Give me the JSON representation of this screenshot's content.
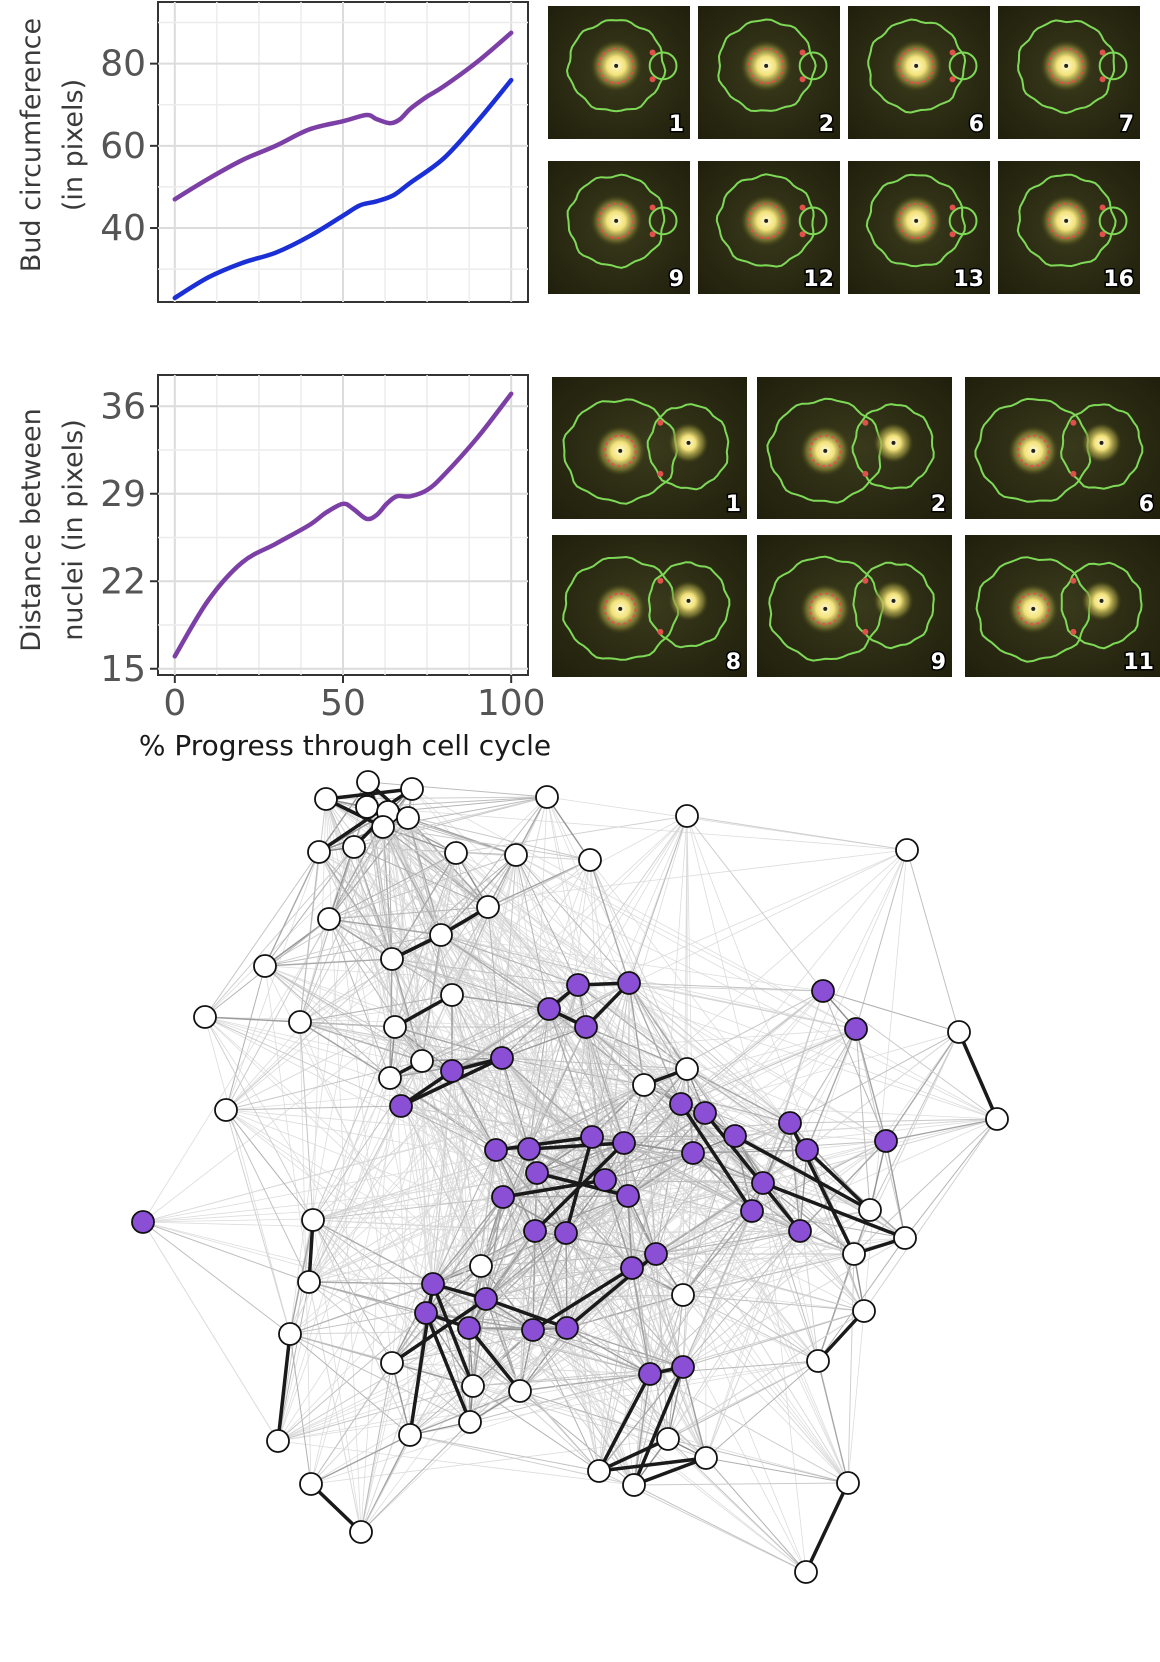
{
  "chart_data": [
    {
      "type": "line",
      "ylabel_line1": "Bud circumference",
      "ylabel_line2": "(in pixels)",
      "xlabel": "",
      "xlim": [
        -5,
        105
      ],
      "ylim": [
        22,
        95
      ],
      "yticks": [
        40,
        60,
        80
      ],
      "grid": true,
      "series": [
        {
          "color": "#7b3fa6",
          "x": [
            0,
            10,
            20,
            30,
            40,
            50,
            57,
            60,
            64,
            67,
            70,
            75,
            80,
            90,
            100
          ],
          "y": [
            47,
            52,
            56.5,
            60,
            64,
            66,
            67.5,
            66.5,
            65.5,
            66.5,
            69,
            72,
            74.5,
            80.5,
            87.5
          ]
        },
        {
          "color": "#1a2fd6",
          "x": [
            0,
            10,
            20,
            30,
            40,
            50,
            55,
            60,
            65,
            70,
            80,
            90,
            100
          ],
          "y": [
            23,
            28,
            31.5,
            34,
            38,
            43,
            45.5,
            46.5,
            48,
            51,
            57,
            66,
            76
          ]
        }
      ]
    },
    {
      "type": "line",
      "ylabel_line1": "Distance between",
      "ylabel_line2": "nuclei (in pixels)",
      "xlabel": "% Progress through cell cycle",
      "xlim": [
        -5,
        105
      ],
      "ylim": [
        14.5,
        38.5
      ],
      "xticks": [
        0,
        50,
        100
      ],
      "yticks": [
        15,
        22,
        29,
        36
      ],
      "grid": true,
      "series": [
        {
          "color": "#7b3fa6",
          "x": [
            0,
            10,
            20,
            30,
            40,
            45,
            50,
            53,
            57,
            60,
            63,
            66,
            70,
            75,
            80,
            90,
            100
          ],
          "y": [
            16,
            20.5,
            23.5,
            25,
            26.5,
            27.5,
            28.2,
            27.8,
            27,
            27.3,
            28.2,
            28.8,
            28.8,
            29.3,
            30.5,
            33.5,
            37
          ]
        }
      ]
    }
  ],
  "micrographs_top": [
    "1",
    "2",
    "6",
    "7",
    "9",
    "12",
    "13",
    "16"
  ],
  "micrographs_bottom": [
    "1",
    "2",
    "6",
    "8",
    "9",
    "11"
  ],
  "network": {
    "colors": {
      "purple": "#8a4fd4",
      "white": "#ffffff",
      "edge_dark": "#1a1a1a",
      "edge_light": "#d8d8d8"
    },
    "white_nodes": [
      [
        368,
        782
      ],
      [
        412,
        789
      ],
      [
        326,
        799
      ],
      [
        367,
        807
      ],
      [
        388,
        812
      ],
      [
        408,
        818
      ],
      [
        383,
        827
      ],
      [
        354,
        847
      ],
      [
        319,
        852
      ],
      [
        456,
        853
      ],
      [
        516,
        855
      ],
      [
        590,
        860
      ],
      [
        547,
        797
      ],
      [
        687,
        816
      ],
      [
        907,
        850
      ],
      [
        488,
        907
      ],
      [
        329,
        919
      ],
      [
        441,
        935
      ],
      [
        392,
        959
      ],
      [
        265,
        966
      ],
      [
        452,
        995
      ],
      [
        395,
        1027
      ],
      [
        300,
        1022
      ],
      [
        205,
        1017
      ],
      [
        422,
        1061
      ],
      [
        390,
        1078
      ],
      [
        644,
        1085
      ],
      [
        687,
        1069
      ],
      [
        226,
        1110
      ],
      [
        959,
        1032
      ],
      [
        997,
        1119
      ],
      [
        313,
        1220
      ],
      [
        870,
        1210
      ],
      [
        905,
        1238
      ],
      [
        854,
        1254
      ],
      [
        309,
        1282
      ],
      [
        481,
        1266
      ],
      [
        683,
        1295
      ],
      [
        864,
        1311
      ],
      [
        290,
        1334
      ],
      [
        818,
        1361
      ],
      [
        392,
        1363
      ],
      [
        473,
        1386
      ],
      [
        520,
        1391
      ],
      [
        470,
        1422
      ],
      [
        410,
        1435
      ],
      [
        278,
        1441
      ],
      [
        668,
        1439
      ],
      [
        706,
        1458
      ],
      [
        599,
        1471
      ],
      [
        634,
        1485
      ],
      [
        311,
        1484
      ],
      [
        848,
        1483
      ],
      [
        361,
        1532
      ],
      [
        806,
        1572
      ]
    ],
    "purple_nodes": [
      [
        578,
        985
      ],
      [
        629,
        983
      ],
      [
        549,
        1009
      ],
      [
        586,
        1027
      ],
      [
        823,
        991
      ],
      [
        856,
        1029
      ],
      [
        502,
        1058
      ],
      [
        452,
        1071
      ],
      [
        401,
        1106
      ],
      [
        681,
        1104
      ],
      [
        705,
        1113
      ],
      [
        735,
        1136
      ],
      [
        790,
        1123
      ],
      [
        592,
        1137
      ],
      [
        624,
        1143
      ],
      [
        496,
        1150
      ],
      [
        529,
        1149
      ],
      [
        693,
        1153
      ],
      [
        886,
        1141
      ],
      [
        807,
        1150
      ],
      [
        537,
        1173
      ],
      [
        605,
        1180
      ],
      [
        763,
        1183
      ],
      [
        503,
        1197
      ],
      [
        628,
        1196
      ],
      [
        752,
        1211
      ],
      [
        143,
        1222
      ],
      [
        535,
        1231
      ],
      [
        566,
        1233
      ],
      [
        800,
        1231
      ],
      [
        656,
        1254
      ],
      [
        632,
        1268
      ],
      [
        433,
        1284
      ],
      [
        486,
        1299
      ],
      [
        426,
        1313
      ],
      [
        469,
        1328
      ],
      [
        533,
        1330
      ],
      [
        567,
        1328
      ],
      [
        650,
        1374
      ],
      [
        683,
        1367
      ]
    ],
    "heavy_edges": [
      [
        326,
        799,
        412,
        789
      ],
      [
        368,
        782,
        383,
        827
      ],
      [
        367,
        807,
        408,
        818
      ],
      [
        319,
        852,
        412,
        789
      ],
      [
        354,
        847,
        388,
        812
      ],
      [
        326,
        799,
        383,
        827
      ],
      [
        368,
        782,
        408,
        818
      ],
      [
        441,
        935,
        488,
        907
      ],
      [
        392,
        959,
        441,
        935
      ],
      [
        395,
        1027,
        452,
        995
      ],
      [
        390,
        1078,
        422,
        1061
      ],
      [
        401,
        1106,
        452,
        1071
      ],
      [
        452,
        1071,
        502,
        1058
      ],
      [
        401,
        1106,
        502,
        1058
      ],
      [
        549,
        1009,
        578,
        985
      ],
      [
        578,
        985,
        629,
        983
      ],
      [
        549,
        1009,
        586,
        1027
      ],
      [
        586,
        1027,
        629,
        983
      ],
      [
        644,
        1085,
        687,
        1069
      ],
      [
        959,
        1032,
        997,
        1119
      ],
      [
        599,
        1471,
        706,
        1458
      ],
      [
        634,
        1485,
        706,
        1458
      ],
      [
        599,
        1471,
        668,
        1439
      ],
      [
        650,
        1374,
        683,
        1367
      ],
      [
        599,
        1471,
        650,
        1374
      ],
      [
        634,
        1485,
        683,
        1367
      ],
      [
        311,
        1484,
        361,
        1532
      ],
      [
        806,
        1572,
        848,
        1483
      ],
      [
        278,
        1441,
        290,
        1334
      ],
      [
        854,
        1254,
        905,
        1238
      ],
      [
        818,
        1361,
        864,
        1311
      ],
      [
        496,
        1150,
        592,
        1137
      ],
      [
        529,
        1149,
        624,
        1143
      ],
      [
        537,
        1173,
        628,
        1196
      ],
      [
        503,
        1197,
        605,
        1180
      ],
      [
        535,
        1231,
        624,
        1143
      ],
      [
        566,
        1233,
        592,
        1137
      ],
      [
        681,
        1104,
        752,
        1211
      ],
      [
        705,
        1113,
        800,
        1231
      ],
      [
        735,
        1136,
        870,
        1210
      ],
      [
        763,
        1183,
        905,
        1238
      ],
      [
        807,
        1150,
        870,
        1210
      ],
      [
        790,
        1123,
        854,
        1254
      ],
      [
        426,
        1313,
        469,
        1328
      ],
      [
        433,
        1284,
        486,
        1299
      ],
      [
        392,
        1363,
        486,
        1299
      ],
      [
        470,
        1422,
        426,
        1313
      ],
      [
        520,
        1391,
        469,
        1328
      ],
      [
        473,
        1386,
        433,
        1284
      ],
      [
        533,
        1330,
        632,
        1268
      ],
      [
        567,
        1328,
        656,
        1254
      ],
      [
        486,
        1299,
        567,
        1328
      ],
      [
        410,
        1435,
        433,
        1284
      ],
      [
        309,
        1282,
        313,
        1220
      ]
    ]
  }
}
